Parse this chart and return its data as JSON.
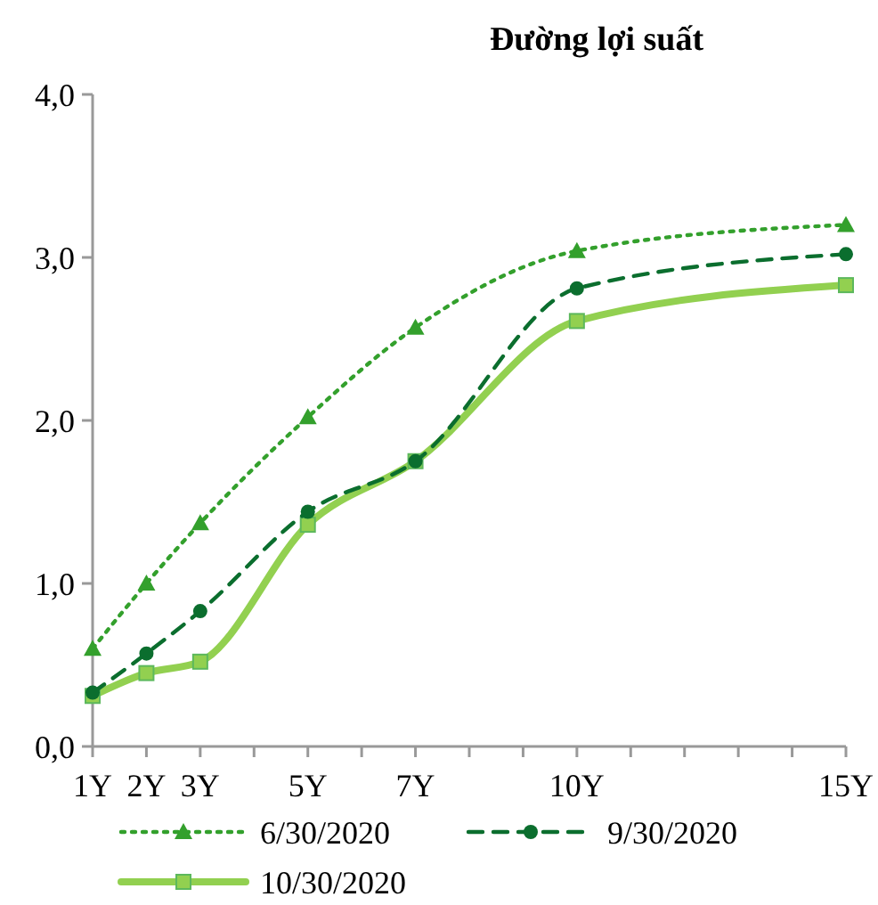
{
  "chart_data": {
    "type": "line",
    "title": "Đường lợi suất",
    "x": [
      1,
      2,
      3,
      5,
      7,
      10,
      15
    ],
    "xlim": [
      1,
      15
    ],
    "xticks": [
      {
        "value": 1,
        "label": "1Y"
      },
      {
        "value": 2,
        "label": "2Y"
      },
      {
        "value": 3,
        "label": "3Y"
      },
      {
        "value": 4,
        "label": null
      },
      {
        "value": 5,
        "label": "5Y"
      },
      {
        "value": 6,
        "label": null
      },
      {
        "value": 7,
        "label": "7Y"
      },
      {
        "value": 8,
        "label": null
      },
      {
        "value": 9,
        "label": null
      },
      {
        "value": 10,
        "label": "10Y"
      },
      {
        "value": 11,
        "label": null
      },
      {
        "value": 12,
        "label": null
      },
      {
        "value": 13,
        "label": null
      },
      {
        "value": 14,
        "label": null
      },
      {
        "value": 15,
        "label": "15Y"
      }
    ],
    "ylim": [
      0,
      4
    ],
    "yticks": [
      {
        "value": 0,
        "label": "0,0"
      },
      {
        "value": 1,
        "label": "1,0"
      },
      {
        "value": 2,
        "label": "2,0"
      },
      {
        "value": 3,
        "label": "3,0"
      },
      {
        "value": 4,
        "label": "4,0"
      }
    ],
    "grid": false,
    "legend": "bottom",
    "series": [
      {
        "name": "6/30/2020",
        "color": "#33a02c",
        "marker": "triangle",
        "line_style": "dotted",
        "values": [
          0.6,
          1.0,
          1.37,
          2.02,
          2.57,
          3.04,
          3.2
        ]
      },
      {
        "name": "9/30/2020",
        "color": "#0b6e2e",
        "marker": "circle",
        "line_style": "dashed",
        "values": [
          0.33,
          0.57,
          0.83,
          1.44,
          1.75,
          2.81,
          3.02
        ]
      },
      {
        "name": "10/30/2020",
        "color": "#92d050",
        "marker": "square",
        "line_style": "solid",
        "values": [
          0.31,
          0.45,
          0.52,
          1.36,
          1.75,
          2.61,
          2.83
        ]
      }
    ]
  }
}
